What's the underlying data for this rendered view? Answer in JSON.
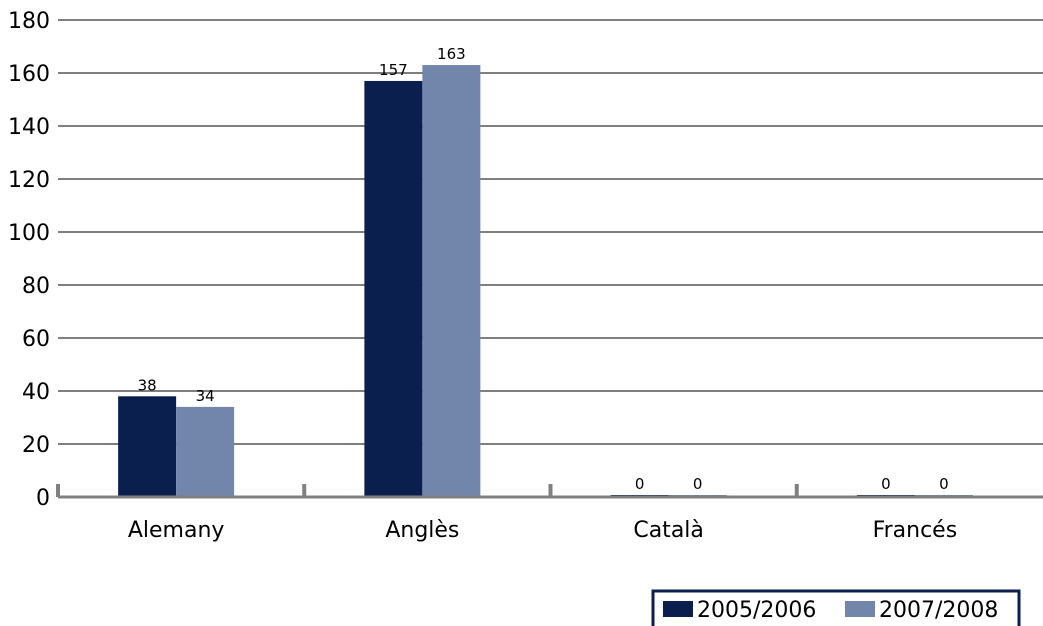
{
  "chart_data": {
    "type": "bar",
    "title": "",
    "xlabel": "",
    "ylabel": "",
    "ylim": [
      0,
      180
    ],
    "yticks": [
      0,
      20,
      40,
      60,
      80,
      100,
      120,
      140,
      160,
      180
    ],
    "grid": true,
    "legend_position": "bottom-right",
    "categories": [
      "Alemany",
      "Anglès",
      "Català",
      "Francés"
    ],
    "series": [
      {
        "name": "2005/2006",
        "color": "#0b1f4e",
        "values": [
          38,
          157,
          0,
          0
        ]
      },
      {
        "name": "2007/2008",
        "color": "#7286ab",
        "values": [
          34,
          163,
          0,
          0
        ]
      }
    ],
    "gridline_color": "#7f7f7f",
    "axis_color": "#808080"
  }
}
